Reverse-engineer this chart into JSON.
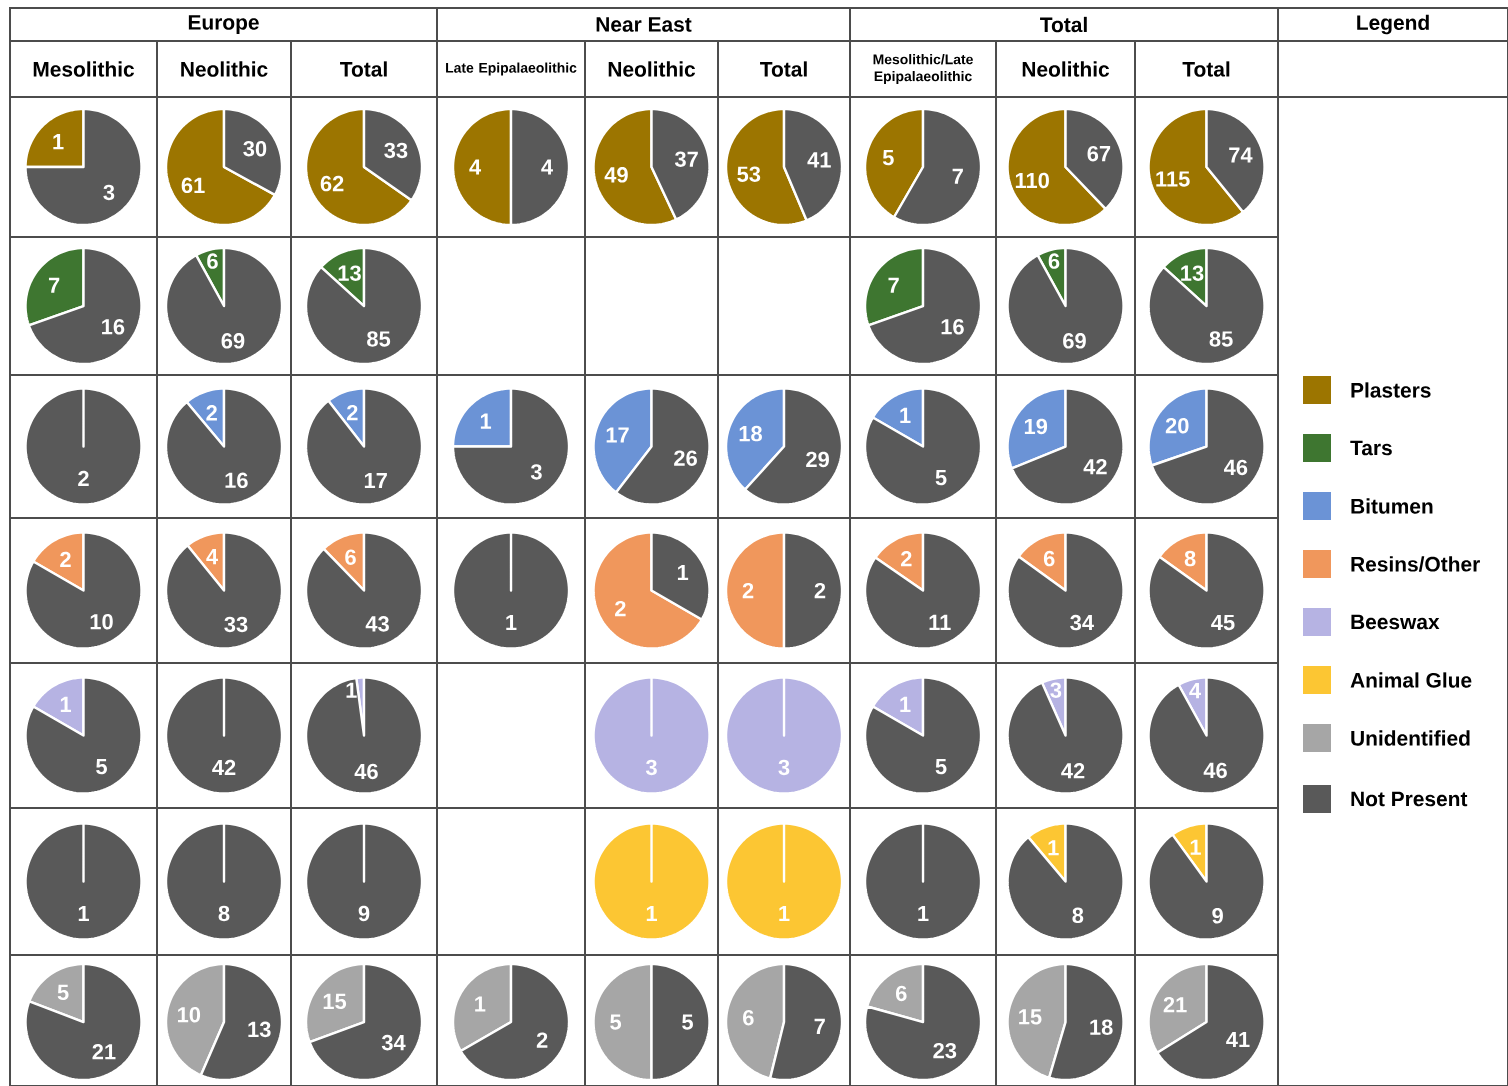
{
  "chart_data": [
    {
      "type": "other",
      "annotations": [
        "Europe",
        "Near East",
        "Total",
        "Legend"
      ],
      "categories": [
        "Plasters",
        "Tars",
        "Bitumen",
        "Resins/Other",
        "Beeswax",
        "Animal Glue",
        "Unidentified",
        "Not Present"
      ],
      "colors": [
        "#9c7500",
        "#3e7630",
        "#6b93d6",
        "#f0975c",
        "#b6b3e3",
        "#fcc633",
        "#a6a6a6",
        "#595959"
      ]
    },
    {
      "type": "pie",
      "title": "Mesolithic",
      "data_labels": true,
      "series": [
        {
          "values": [
            1,
            3
          ],
          "colors": [
            "#9c7500",
            "#595959"
          ]
        },
        {
          "values": [
            7,
            16
          ],
          "colors": [
            "#3e7630",
            "#595959"
          ]
        },
        {
          "values": [
            0,
            2
          ],
          "colors": [
            "#6b93d6",
            "#595959"
          ],
          "value_labels": [
            null,
            "2"
          ]
        },
        {
          "values": [
            2,
            10
          ],
          "colors": [
            "#f0975c",
            "#595959"
          ]
        },
        {
          "values": [
            1,
            5
          ],
          "colors": [
            "#b6b3e3",
            "#595959"
          ]
        },
        {
          "values": [
            0,
            1
          ],
          "colors": [
            "#fcc633",
            "#595959"
          ],
          "value_labels": [
            null,
            "1"
          ]
        },
        {
          "values": [
            5,
            21
          ],
          "colors": [
            "#a6a6a6",
            "#595959"
          ]
        }
      ]
    },
    {
      "type": "pie",
      "title": "Neolithic",
      "data_labels": true,
      "series": [
        {
          "values": [
            61,
            30
          ],
          "colors": [
            "#9c7500",
            "#595959"
          ]
        },
        {
          "values": [
            6,
            69
          ],
          "colors": [
            "#3e7630",
            "#595959"
          ]
        },
        {
          "values": [
            2,
            16
          ],
          "colors": [
            "#6b93d6",
            "#595959"
          ]
        },
        {
          "values": [
            4,
            33
          ],
          "colors": [
            "#f0975c",
            "#595959"
          ]
        },
        {
          "values": [
            0,
            42
          ],
          "colors": [
            "#b6b3e3",
            "#595959"
          ],
          "value_labels": [
            null,
            "42"
          ]
        },
        {
          "values": [
            0,
            8
          ],
          "colors": [
            "#fcc633",
            "#595959"
          ],
          "value_labels": [
            null,
            "8"
          ]
        },
        {
          "values": [
            10,
            13
          ],
          "colors": [
            "#a6a6a6",
            "#595959"
          ]
        }
      ]
    },
    {
      "type": "pie",
      "title": "Total",
      "data_labels": true,
      "series": [
        {
          "values": [
            62,
            33
          ],
          "colors": [
            "#9c7500",
            "#595959"
          ]
        },
        {
          "values": [
            13,
            85
          ],
          "colors": [
            "#3e7630",
            "#595959"
          ]
        },
        {
          "values": [
            2,
            17
          ],
          "colors": [
            "#6b93d6",
            "#595959"
          ]
        },
        {
          "values": [
            6,
            43
          ],
          "colors": [
            "#f0975c",
            "#595959"
          ]
        },
        {
          "values": [
            1,
            46
          ],
          "colors": [
            "#b6b3e3",
            "#595959"
          ]
        },
        {
          "values": [
            0,
            9
          ],
          "colors": [
            "#fcc633",
            "#595959"
          ],
          "value_labels": [
            null,
            "9"
          ]
        },
        {
          "values": [
            15,
            34
          ],
          "colors": [
            "#a6a6a6",
            "#595959"
          ]
        }
      ]
    },
    {
      "type": "pie",
      "title": "Late Epipalaeolithic",
      "data_labels": true,
      "series": [
        {
          "values": [
            4,
            4
          ],
          "colors": [
            "#9c7500",
            "#595959"
          ]
        },
        {
          "values": [
            1,
            3
          ],
          "colors": [
            "#6b93d6",
            "#595959"
          ]
        },
        {
          "values": [
            0,
            1
          ],
          "colors": [
            "#f0975c",
            "#595959"
          ],
          "value_labels": [
            null,
            "1"
          ]
        },
        {
          "values": [
            1,
            2
          ],
          "colors": [
            "#a6a6a6",
            "#595959"
          ]
        }
      ]
    },
    {
      "type": "pie",
      "title": "Neolithic",
      "data_labels": true,
      "series": [
        {
          "values": [
            49,
            37
          ],
          "colors": [
            "#9c7500",
            "#595959"
          ]
        },
        {
          "values": [
            17,
            26
          ],
          "colors": [
            "#6b93d6",
            "#595959"
          ]
        },
        {
          "values": [
            2,
            1
          ],
          "colors": [
            "#f0975c",
            "#595959"
          ]
        },
        {
          "values": [
            3,
            0
          ],
          "colors": [
            "#b6b3e3",
            "#595959"
          ],
          "value_labels": [
            "3",
            null
          ]
        },
        {
          "values": [
            1,
            0
          ],
          "colors": [
            "#fcc633",
            "#595959"
          ],
          "value_labels": [
            "1",
            null
          ]
        },
        {
          "values": [
            5,
            5
          ],
          "colors": [
            "#a6a6a6",
            "#595959"
          ]
        }
      ]
    },
    {
      "type": "pie",
      "title": "Total",
      "data_labels": true,
      "series": [
        {
          "values": [
            53,
            41
          ],
          "colors": [
            "#9c7500",
            "#595959"
          ]
        },
        {
          "values": [
            18,
            29
          ],
          "colors": [
            "#6b93d6",
            "#595959"
          ]
        },
        {
          "values": [
            2,
            2
          ],
          "colors": [
            "#f0975c",
            "#595959"
          ]
        },
        {
          "values": [
            3,
            0
          ],
          "colors": [
            "#b6b3e3",
            "#595959"
          ],
          "value_labels": [
            "3",
            null
          ]
        },
        {
          "values": [
            1,
            0
          ],
          "colors": [
            "#fcc633",
            "#595959"
          ],
          "value_labels": [
            "1",
            null
          ]
        },
        {
          "values": [
            6,
            7
          ],
          "colors": [
            "#a6a6a6",
            "#595959"
          ]
        }
      ]
    },
    {
      "type": "pie",
      "title": "Mesolithic/Late Epipalaeolithic",
      "data_labels": true,
      "series": [
        {
          "values": [
            5,
            7
          ],
          "colors": [
            "#9c7500",
            "#595959"
          ]
        },
        {
          "values": [
            7,
            16
          ],
          "colors": [
            "#3e7630",
            "#595959"
          ]
        },
        {
          "values": [
            1,
            5
          ],
          "colors": [
            "#6b93d6",
            "#595959"
          ]
        },
        {
          "values": [
            2,
            11
          ],
          "colors": [
            "#f0975c",
            "#595959"
          ]
        },
        {
          "values": [
            1,
            5
          ],
          "colors": [
            "#b6b3e3",
            "#595959"
          ]
        },
        {
          "values": [
            0,
            1
          ],
          "colors": [
            "#fcc633",
            "#595959"
          ],
          "value_labels": [
            null,
            "1"
          ]
        },
        {
          "values": [
            6,
            23
          ],
          "colors": [
            "#a6a6a6",
            "#595959"
          ]
        }
      ]
    },
    {
      "type": "pie",
      "title": "Neolithic",
      "data_labels": true,
      "series": [
        {
          "values": [
            110,
            67
          ],
          "colors": [
            "#9c7500",
            "#595959"
          ]
        },
        {
          "values": [
            6,
            69
          ],
          "colors": [
            "#3e7630",
            "#595959"
          ]
        },
        {
          "values": [
            19,
            42
          ],
          "colors": [
            "#6b93d6",
            "#595959"
          ]
        },
        {
          "values": [
            6,
            34
          ],
          "colors": [
            "#f0975c",
            "#595959"
          ]
        },
        {
          "values": [
            3,
            42
          ],
          "colors": [
            "#b6b3e3",
            "#595959"
          ]
        },
        {
          "values": [
            1,
            8
          ],
          "colors": [
            "#fcc633",
            "#595959"
          ]
        },
        {
          "values": [
            15,
            18
          ],
          "colors": [
            "#a6a6a6",
            "#595959"
          ]
        }
      ]
    },
    {
      "type": "pie",
      "title": "Total",
      "data_labels": true,
      "series": [
        {
          "values": [
            115,
            74
          ],
          "colors": [
            "#9c7500",
            "#595959"
          ]
        },
        {
          "values": [
            13,
            85
          ],
          "colors": [
            "#3e7630",
            "#595959"
          ]
        },
        {
          "values": [
            20,
            46
          ],
          "colors": [
            "#6b93d6",
            "#595959"
          ]
        },
        {
          "values": [
            8,
            45
          ],
          "colors": [
            "#f0975c",
            "#595959"
          ]
        },
        {
          "values": [
            4,
            46
          ],
          "colors": [
            "#b6b3e3",
            "#595959"
          ]
        },
        {
          "values": [
            1,
            9
          ],
          "colors": [
            "#fcc633",
            "#595959"
          ]
        },
        {
          "values": [
            21,
            41
          ],
          "colors": [
            "#a6a6a6",
            "#595959"
          ]
        }
      ]
    }
  ]
}
